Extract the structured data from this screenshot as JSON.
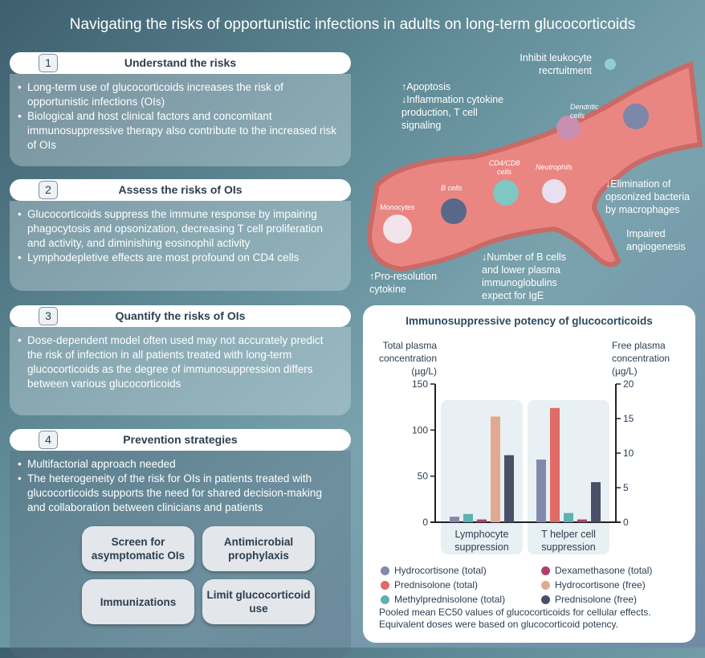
{
  "title": "Navigating the risks of opportunistic infections in adults on long-term glucocorticoids",
  "sections": [
    {
      "num": "1",
      "heading": "Understand the risks",
      "bullets": [
        "Long-term use of glucocorticoids increases the risk of opportunistic infections (OIs)",
        "Biological and host clinical factors and concomitant immunosuppressive therapy also contribute to the increased risk of OIs"
      ]
    },
    {
      "num": "2",
      "heading": "Assess the risks of OIs",
      "bullets": [
        "Glucocorticoids suppress the immune response by impairing phagocytosis and opsonization, decreasing T cell proliferation and activity, and diminishing eosinophil activity",
        "Lymphodepletive effects are most profound on CD4 cells"
      ]
    },
    {
      "num": "3",
      "heading": "Quantify the risks of OIs",
      "bullets": [
        "Dose-dependent model often used may not accurately predict the risk of infection in all patients treated with long-term glucocorticoids as the degree of immunosuppression differs between various glucocorticoids"
      ]
    },
    {
      "num": "4",
      "heading": "Prevention strategies",
      "bullets": [
        "Multifactorial approach needed",
        "The heterogeneity of the risk for OIs in patients treated with glucocorticoids supports the need for shared decision-making and collaboration between clinicians and patients"
      ],
      "buttons": [
        "Screen for asymptomatic OIs",
        "Antimicrobial prophylaxis",
        "Immunizations",
        "Limit glucocorticoid use"
      ]
    }
  ],
  "diagram": {
    "labels": {
      "leukocyte": "Inhibit leukocyte recrtuitment",
      "apoptosis": "↑Apoptosis",
      "inflammation": "↓Inflammation cytokine production, T cell signaling",
      "elimination": "↓Elimination of opsonized bacteria by macrophages",
      "angiogenesis": "Impaired angiogenesis",
      "bcells_effect": "↓Number of B cells and lower plasma immunoglobulins expect for IgE",
      "proresolution": "↑Pro-resolution cytokine"
    },
    "cells": {
      "dendritic": "Dendritic cells",
      "cd4": "CD4/CD8 cells",
      "neutrophils": "Neutrophils",
      "bcells": "B cells",
      "monocytes": "Monocytes"
    }
  },
  "chart_data": {
    "type": "bar",
    "title": "Immunosuppressive potency of glucocorticoids",
    "ylabel_left": "Total plasma concentration (µg/L)",
    "ylabel_right": "Free plasma concentration (µg/L)",
    "ylim_left": [
      0,
      150
    ],
    "ylim_right": [
      0,
      20
    ],
    "yticks_left": [
      "0",
      "50",
      "100",
      "150"
    ],
    "yticks_right": [
      "0",
      "5",
      "10",
      "15",
      "20"
    ],
    "categories": [
      "Lymphocyte suppression",
      "T helper cell suppression"
    ],
    "series": [
      {
        "name": "Hydrocortisone (total)",
        "axis": "left",
        "color": "#8189ad",
        "values": [
          6,
          68
        ]
      },
      {
        "name": "Prednisolone (total)",
        "axis": "left",
        "color": "#e06b66",
        "values": [
          null,
          124
        ]
      },
      {
        "name": "Methylprednisolone (total)",
        "axis": "left",
        "color": "#5fb0b0",
        "values": [
          9,
          10
        ]
      },
      {
        "name": "Dexamethasone (total)",
        "axis": "left",
        "color": "#b0406a",
        "values": [
          3,
          3
        ]
      },
      {
        "name": "Hydrocortisone (free)",
        "axis": "right",
        "color": "#e3a890",
        "values": [
          15.3,
          null
        ]
      },
      {
        "name": "Prednisolone (free)",
        "axis": "right",
        "color": "#4b5069",
        "values": [
          9.7,
          5.8
        ]
      }
    ],
    "note": "Pooled mean EC50 values of glucocorticoids for cellular effects. Equivalent doses were based on glucocorticoid potency."
  }
}
